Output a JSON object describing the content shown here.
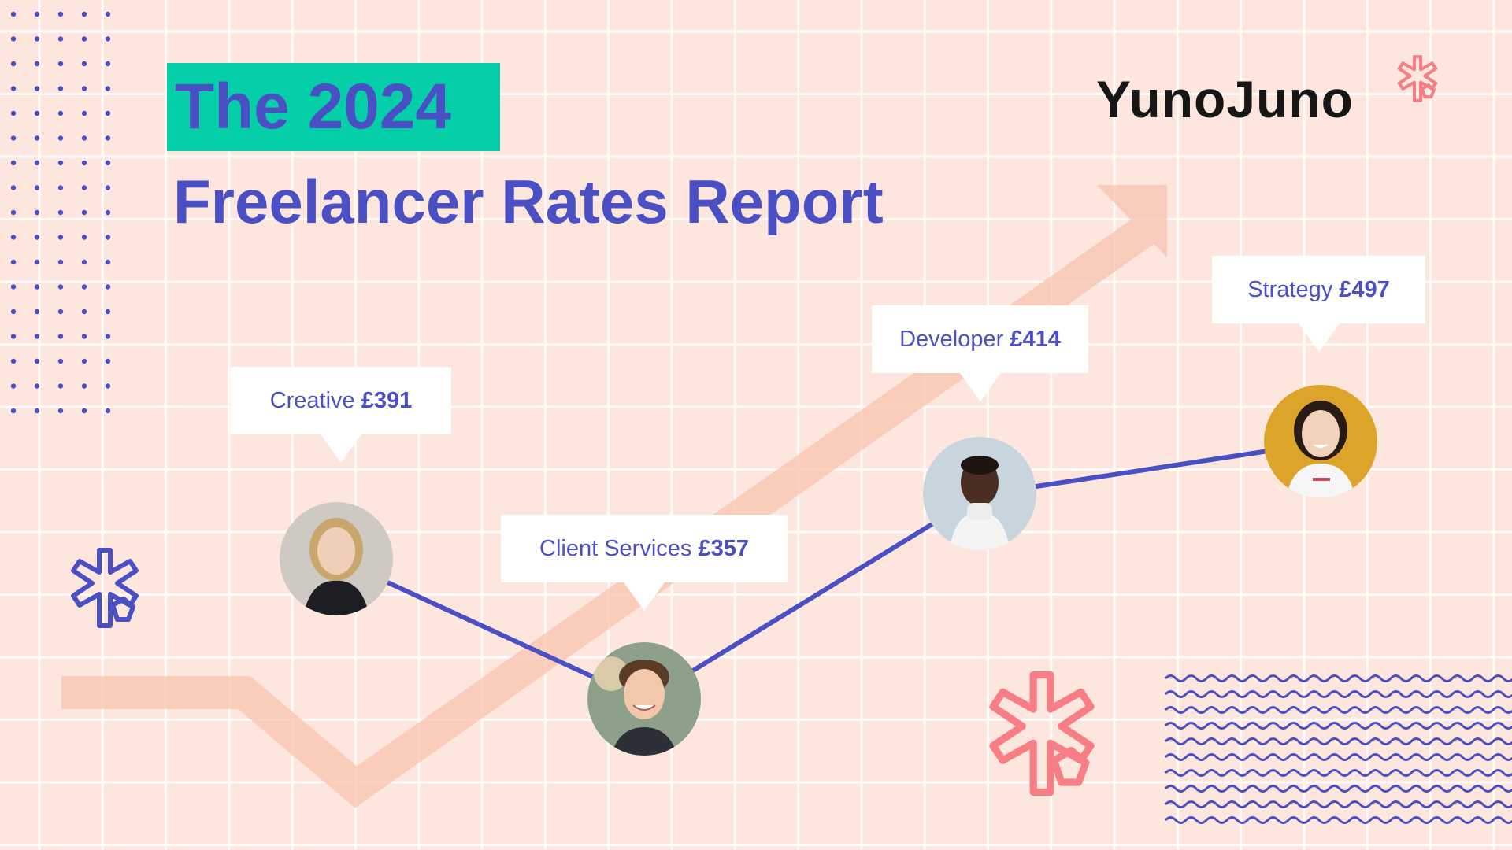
{
  "header": {
    "title_line1": "The 2024",
    "title_line2": "Freelancer Rates Report"
  },
  "brand": {
    "logo_text": "YunoJuno"
  },
  "colors": {
    "brand": "#4B4FC4",
    "teal": "#04CFA9",
    "background": "#FDE6DE",
    "arrow": "#F8C8B4",
    "coral": "#F77E85"
  },
  "icons": [
    "dot-grid",
    "yunojuno-asterisk-icon",
    "wave-pattern",
    "trend-arrow"
  ],
  "roles": [
    {
      "name": "Creative",
      "rate": "£391",
      "value": 391,
      "avatar": "woman-blonde-hair-avatar"
    },
    {
      "name": "Client Services",
      "rate": "£357",
      "value": 357,
      "avatar": "man-smiling-curly-hair-avatar"
    },
    {
      "name": "Developer",
      "rate": "£414",
      "value": 414,
      "avatar": "man-white-turtleneck-avatar"
    },
    {
      "name": "Strategy",
      "rate": "£497",
      "value": 497,
      "avatar": "woman-yellow-background-avatar"
    }
  ]
}
